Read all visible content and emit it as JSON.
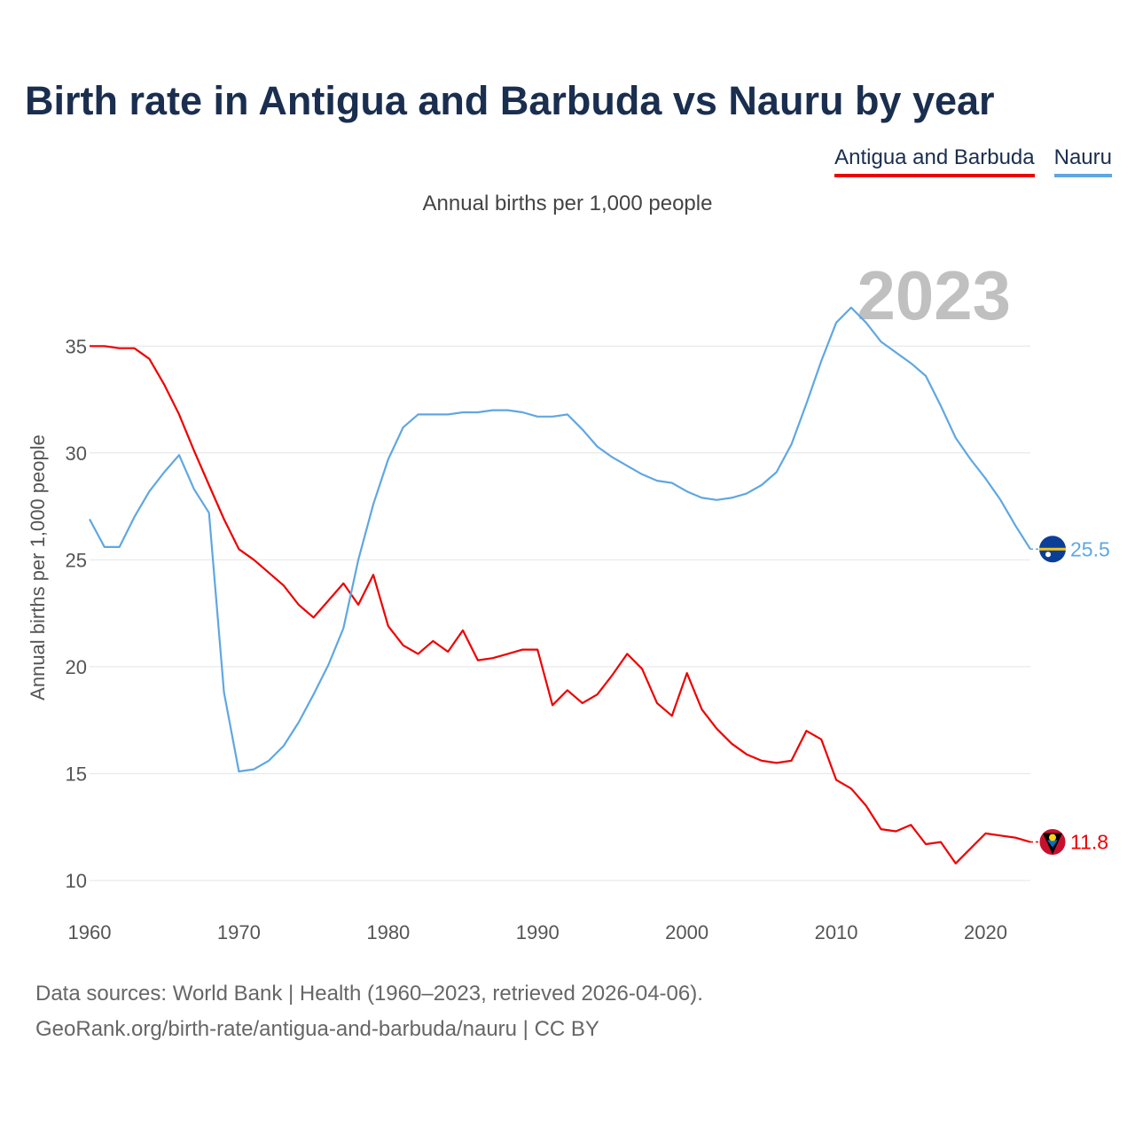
{
  "title": "Birth rate in Antigua and Barbuda vs Nauru by year",
  "subtitle": "Annual births per 1,000 people",
  "legend": {
    "antigua": "Antigua and Barbuda",
    "nauru": "Nauru"
  },
  "source": {
    "line1": "Data sources: World Bank | Health (1960–2023, retrieved 2026-04-06).",
    "line2": "GeoRank.org/birth-rate/antigua-and-barbuda/nauru | CC BY"
  },
  "colors": {
    "antigua": "#ee0000",
    "nauru": "#5fa7e2",
    "title": "#1a2e4f",
    "year_watermark": "#c0c0c0"
  },
  "chart_data": {
    "type": "line",
    "title": "Birth rate in Antigua and Barbuda vs Nauru by year",
    "xlabel": "",
    "ylabel": "Annual births per 1,000 people",
    "xlim": [
      1960,
      2023
    ],
    "ylim": [
      9.5,
      37.5
    ],
    "x_ticks": [
      1960,
      1970,
      1980,
      1990,
      2000,
      2010,
      2020
    ],
    "y_ticks": [
      10,
      15,
      20,
      25,
      30,
      35
    ],
    "year_label": "2023",
    "grid": true,
    "x": [
      1960,
      1961,
      1962,
      1963,
      1964,
      1965,
      1966,
      1967,
      1968,
      1969,
      1970,
      1971,
      1972,
      1973,
      1974,
      1975,
      1976,
      1977,
      1978,
      1979,
      1980,
      1981,
      1982,
      1983,
      1984,
      1985,
      1986,
      1987,
      1988,
      1989,
      1990,
      1991,
      1992,
      1993,
      1994,
      1995,
      1996,
      1997,
      1998,
      1999,
      2000,
      2001,
      2002,
      2003,
      2004,
      2005,
      2006,
      2007,
      2008,
      2009,
      2010,
      2011,
      2012,
      2013,
      2014,
      2015,
      2016,
      2017,
      2018,
      2019,
      2020,
      2021,
      2022,
      2023
    ],
    "series": [
      {
        "name": "Antigua and Barbuda",
        "color": "#ee0000",
        "end_label": "11.8",
        "values": [
          35.0,
          35.0,
          34.9,
          34.9,
          34.4,
          33.2,
          31.8,
          30.1,
          28.5,
          26.9,
          25.5,
          25.0,
          24.4,
          23.8,
          22.9,
          22.3,
          23.1,
          23.9,
          22.9,
          24.3,
          21.9,
          21.0,
          20.6,
          21.2,
          20.7,
          21.7,
          20.3,
          20.4,
          20.6,
          20.8,
          20.8,
          18.2,
          18.9,
          18.3,
          18.7,
          19.6,
          20.6,
          19.9,
          18.3,
          17.7,
          19.7,
          18.0,
          17.1,
          16.4,
          15.9,
          15.6,
          15.5,
          15.6,
          17.0,
          16.6,
          14.7,
          14.3,
          13.5,
          12.4,
          12.3,
          12.6,
          11.7,
          11.8,
          10.8,
          11.5,
          12.2,
          12.1,
          12.0,
          11.8
        ]
      },
      {
        "name": "Nauru",
        "color": "#5fa7e2",
        "end_label": "25.5",
        "values": [
          26.9,
          25.6,
          25.6,
          27.0,
          28.2,
          29.1,
          29.9,
          28.3,
          27.2,
          18.8,
          15.1,
          15.2,
          15.6,
          16.3,
          17.4,
          18.7,
          20.1,
          21.8,
          25.0,
          27.6,
          29.7,
          31.2,
          31.8,
          31.8,
          31.8,
          31.9,
          31.9,
          32.0,
          32.0,
          31.9,
          31.7,
          31.7,
          31.8,
          31.1,
          30.3,
          29.8,
          29.4,
          29.0,
          28.7,
          28.6,
          28.2,
          27.9,
          27.8,
          27.9,
          28.1,
          28.5,
          29.1,
          30.4,
          32.3,
          34.3,
          36.1,
          36.8,
          36.1,
          35.2,
          34.7,
          34.2,
          33.6,
          32.2,
          30.7,
          29.7,
          28.8,
          27.8,
          26.6,
          25.5
        ]
      }
    ]
  }
}
